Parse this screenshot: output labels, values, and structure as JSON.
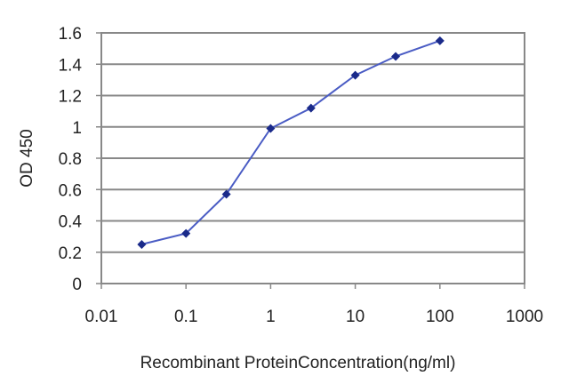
{
  "chart_data": {
    "type": "line",
    "xscale": "log",
    "x": [
      0.03,
      0.1,
      0.3,
      1,
      3,
      10,
      30,
      100
    ],
    "series": [
      {
        "values": [
          0.25,
          0.32,
          0.57,
          0.99,
          1.12,
          1.33,
          1.45,
          1.55
        ]
      }
    ],
    "xlim": [
      0.01,
      1000
    ],
    "ylim": [
      0,
      1.6
    ],
    "x_ticks": [
      "0.01",
      "0.1",
      "1",
      "10",
      "100",
      "1000"
    ],
    "y_ticks": [
      "0",
      "0.2",
      "0.4",
      "0.6",
      "0.8",
      "1",
      "1.2",
      "1.4",
      "1.6"
    ],
    "xlabel": "Recombinant ProteinConcentration(ng/ml)",
    "ylabel": "OD 450",
    "title": "",
    "grid": "horizontal",
    "legend": "none",
    "colors": {
      "line": "#4a5cc4",
      "marker": "#1a2a8a",
      "plot_background": "#ffffff",
      "grid": "#888888",
      "frame": "#888888"
    }
  }
}
